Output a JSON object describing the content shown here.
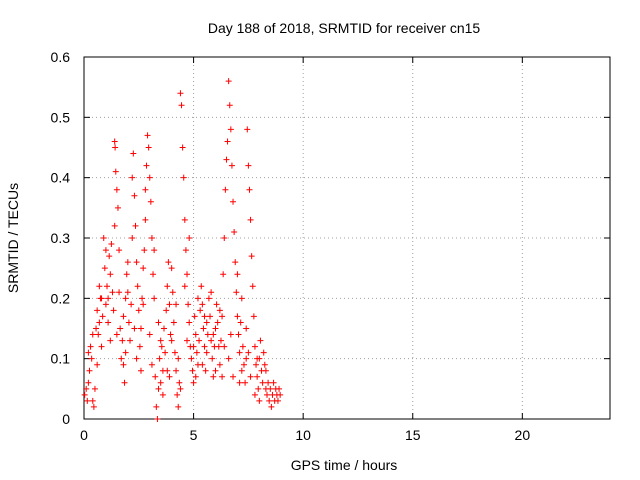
{
  "chart_data": {
    "type": "scatter",
    "title": "Day 188 of 2018, SRMTID for receiver cn15",
    "xlabel": "GPS time / hours",
    "ylabel": "SRMTID / TECUs",
    "xlim": [
      0,
      24
    ],
    "ylim": [
      0,
      0.6
    ],
    "xticks": [
      0,
      5,
      10,
      15,
      20
    ],
    "xtick_labels": [
      "0",
      "5",
      "10",
      "15",
      "20"
    ],
    "yticks": [
      0,
      0.1,
      0.2,
      0.3,
      0.4,
      0.5,
      0.6
    ],
    "ytick_labels": [
      "0",
      "0.1",
      "0.2",
      "0.3",
      "0.4",
      "0.5",
      "0.6"
    ],
    "grid": true,
    "marker": "+",
    "color": "#ff0000",
    "series": [
      {
        "name": "cn15",
        "points": [
          [
            0.03,
            0.04
          ],
          [
            0.1,
            0.05
          ],
          [
            0.15,
            0.03
          ],
          [
            0.2,
            0.06
          ],
          [
            0.25,
            0.08
          ],
          [
            0.3,
            0.12
          ],
          [
            0.35,
            0.1
          ],
          [
            0.4,
            0.03
          ],
          [
            0.45,
            0.02
          ],
          [
            0.5,
            0.05
          ],
          [
            0.55,
            0.15
          ],
          [
            0.6,
            0.18
          ],
          [
            0.65,
            0.14
          ],
          [
            0.7,
            0.22
          ],
          [
            0.75,
            0.2
          ],
          [
            0.8,
            0.12
          ],
          [
            0.85,
            0.17
          ],
          [
            0.9,
            0.3
          ],
          [
            0.95,
            0.25
          ],
          [
            1.0,
            0.19
          ],
          [
            1.05,
            0.22
          ],
          [
            1.1,
            0.16
          ],
          [
            1.15,
            0.27
          ],
          [
            1.2,
            0.24
          ],
          [
            1.25,
            0.29
          ],
          [
            1.3,
            0.21
          ],
          [
            1.35,
            0.18
          ],
          [
            1.4,
            0.46
          ],
          [
            1.42,
            0.45
          ],
          [
            1.45,
            0.41
          ],
          [
            1.5,
            0.38
          ],
          [
            1.55,
            0.35
          ],
          [
            1.6,
            0.28
          ],
          [
            1.65,
            0.15
          ],
          [
            1.7,
            0.1
          ],
          [
            1.75,
            0.13
          ],
          [
            1.8,
            0.09
          ],
          [
            1.85,
            0.06
          ],
          [
            1.9,
            0.2
          ],
          [
            1.95,
            0.24
          ],
          [
            2.0,
            0.21
          ],
          [
            2.05,
            0.16
          ],
          [
            2.1,
            0.13
          ],
          [
            2.15,
            0.19
          ],
          [
            2.2,
            0.4
          ],
          [
            2.25,
            0.44
          ],
          [
            2.3,
            0.37
          ],
          [
            2.35,
            0.32
          ],
          [
            2.4,
            0.26
          ],
          [
            2.45,
            0.22
          ],
          [
            2.5,
            0.18
          ],
          [
            2.55,
            0.12
          ],
          [
            2.6,
            0.15
          ],
          [
            2.65,
            0.2
          ],
          [
            2.7,
            0.25
          ],
          [
            2.75,
            0.28
          ],
          [
            2.8,
            0.38
          ],
          [
            2.85,
            0.42
          ],
          [
            2.9,
            0.47
          ],
          [
            2.95,
            0.45
          ],
          [
            3.0,
            0.4
          ],
          [
            3.05,
            0.36
          ],
          [
            3.1,
            0.3
          ],
          [
            3.15,
            0.24
          ],
          [
            3.2,
            0.2
          ],
          [
            3.25,
            0.07
          ],
          [
            3.3,
            0.02
          ],
          [
            3.35,
            0.0
          ],
          [
            3.4,
            0.05
          ],
          [
            3.45,
            0.1
          ],
          [
            3.5,
            0.06
          ],
          [
            3.55,
            0.12
          ],
          [
            3.6,
            0.08
          ],
          [
            3.65,
            0.15
          ],
          [
            3.7,
            0.11
          ],
          [
            3.75,
            0.18
          ],
          [
            3.8,
            0.22
          ],
          [
            3.85,
            0.26
          ],
          [
            3.9,
            0.19
          ],
          [
            3.95,
            0.14
          ],
          [
            4.0,
            0.25
          ],
          [
            4.05,
            0.21
          ],
          [
            4.1,
            0.16
          ],
          [
            4.15,
            0.11
          ],
          [
            4.2,
            0.08
          ],
          [
            4.25,
            0.04
          ],
          [
            4.3,
            0.02
          ],
          [
            4.35,
            0.06
          ],
          [
            4.4,
            0.54
          ],
          [
            4.45,
            0.52
          ],
          [
            4.5,
            0.45
          ],
          [
            4.55,
            0.4
          ],
          [
            4.6,
            0.33
          ],
          [
            4.65,
            0.28
          ],
          [
            4.7,
            0.24
          ],
          [
            4.75,
            0.19
          ],
          [
            4.8,
            0.16
          ],
          [
            4.85,
            0.12
          ],
          [
            4.9,
            0.1
          ],
          [
            4.95,
            0.08
          ],
          [
            5.0,
            0.12
          ],
          [
            5.05,
            0.17
          ],
          [
            5.1,
            0.14
          ],
          [
            5.15,
            0.11
          ],
          [
            5.2,
            0.09
          ],
          [
            5.25,
            0.13
          ],
          [
            5.3,
            0.18
          ],
          [
            5.35,
            0.22
          ],
          [
            5.4,
            0.19
          ],
          [
            5.45,
            0.15
          ],
          [
            5.5,
            0.12
          ],
          [
            5.55,
            0.08
          ],
          [
            5.6,
            0.11
          ],
          [
            5.65,
            0.14
          ],
          [
            5.7,
            0.2
          ],
          [
            5.75,
            0.17
          ],
          [
            5.8,
            0.13
          ],
          [
            5.85,
            0.1
          ],
          [
            5.9,
            0.07
          ],
          [
            5.95,
            0.12
          ],
          [
            6.0,
            0.15
          ],
          [
            6.05,
            0.19
          ],
          [
            6.1,
            0.16
          ],
          [
            6.15,
            0.12
          ],
          [
            6.2,
            0.09
          ],
          [
            6.25,
            0.13
          ],
          [
            6.3,
            0.17
          ],
          [
            6.35,
            0.24
          ],
          [
            6.4,
            0.3
          ],
          [
            6.45,
            0.38
          ],
          [
            6.5,
            0.43
          ],
          [
            6.55,
            0.46
          ],
          [
            6.6,
            0.56
          ],
          [
            6.65,
            0.52
          ],
          [
            6.7,
            0.48
          ],
          [
            6.75,
            0.42
          ],
          [
            6.8,
            0.36
          ],
          [
            6.85,
            0.31
          ],
          [
            6.9,
            0.26
          ],
          [
            6.95,
            0.21
          ],
          [
            7.0,
            0.17
          ],
          [
            7.05,
            0.14
          ],
          [
            7.1,
            0.11
          ],
          [
            7.15,
            0.16
          ],
          [
            7.2,
            0.2
          ],
          [
            7.25,
            0.12
          ],
          [
            7.3,
            0.09
          ],
          [
            7.35,
            0.06
          ],
          [
            7.4,
            0.15
          ],
          [
            7.45,
            0.48
          ],
          [
            7.5,
            0.42
          ],
          [
            7.55,
            0.38
          ],
          [
            7.6,
            0.33
          ],
          [
            7.65,
            0.27
          ],
          [
            7.7,
            0.22
          ],
          [
            7.75,
            0.17
          ],
          [
            7.8,
            0.12
          ],
          [
            7.85,
            0.09
          ],
          [
            7.9,
            0.07
          ],
          [
            7.95,
            0.05
          ],
          [
            8.0,
            0.1
          ],
          [
            8.05,
            0.13
          ],
          [
            8.1,
            0.08
          ],
          [
            8.15,
            0.06
          ],
          [
            8.2,
            0.11
          ],
          [
            8.25,
            0.09
          ],
          [
            8.3,
            0.05
          ],
          [
            8.35,
            0.04
          ],
          [
            8.4,
            0.06
          ],
          [
            8.45,
            0.03
          ],
          [
            8.5,
            0.05
          ],
          [
            8.55,
            0.02
          ],
          [
            8.6,
            0.04
          ],
          [
            8.65,
            0.06
          ],
          [
            8.7,
            0.03
          ],
          [
            8.75,
            0.05
          ],
          [
            8.8,
            0.04
          ],
          [
            8.85,
            0.03
          ],
          [
            8.9,
            0.05
          ],
          [
            8.95,
            0.04
          ],
          [
            0.2,
            0.11
          ],
          [
            0.4,
            0.14
          ],
          [
            0.6,
            0.09
          ],
          [
            0.8,
            0.2
          ],
          [
            1.0,
            0.28
          ],
          [
            1.2,
            0.13
          ],
          [
            1.4,
            0.32
          ],
          [
            1.6,
            0.21
          ],
          [
            1.8,
            0.17
          ],
          [
            2.0,
            0.26
          ],
          [
            2.2,
            0.3
          ],
          [
            2.4,
            0.1
          ],
          [
            2.6,
            0.08
          ],
          [
            2.8,
            0.33
          ],
          [
            3.0,
            0.14
          ],
          [
            3.2,
            0.28
          ],
          [
            3.4,
            0.16
          ],
          [
            3.6,
            0.04
          ],
          [
            3.8,
            0.08
          ],
          [
            4.0,
            0.13
          ],
          [
            4.2,
            0.19
          ],
          [
            4.4,
            0.05
          ],
          [
            4.6,
            0.22
          ],
          [
            4.8,
            0.3
          ],
          [
            5.0,
            0.06
          ],
          [
            5.2,
            0.2
          ],
          [
            5.4,
            0.09
          ],
          [
            5.6,
            0.16
          ],
          [
            5.8,
            0.21
          ],
          [
            6.0,
            0.08
          ],
          [
            6.2,
            0.18
          ],
          [
            6.4,
            0.12
          ],
          [
            6.6,
            0.1
          ],
          [
            6.8,
            0.07
          ],
          [
            7.0,
            0.24
          ],
          [
            7.2,
            0.08
          ],
          [
            7.4,
            0.1
          ],
          [
            7.6,
            0.07
          ],
          [
            7.8,
            0.04
          ],
          [
            8.0,
            0.03
          ],
          [
            0.7,
            0.16
          ],
          [
            1.1,
            0.2
          ],
          [
            1.5,
            0.14
          ],
          [
            1.9,
            0.11
          ],
          [
            2.3,
            0.15
          ],
          [
            2.7,
            0.19
          ],
          [
            3.1,
            0.09
          ],
          [
            3.5,
            0.13
          ],
          [
            3.9,
            0.07
          ],
          [
            4.3,
            0.1
          ],
          [
            4.7,
            0.13
          ],
          [
            5.1,
            0.07
          ],
          [
            5.5,
            0.17
          ],
          [
            5.9,
            0.14
          ],
          [
            6.3,
            0.07
          ],
          [
            6.7,
            0.14
          ],
          [
            7.1,
            0.06
          ],
          [
            7.5,
            0.11
          ],
          [
            7.9,
            0.1
          ],
          [
            8.3,
            0.08
          ]
        ]
      }
    ]
  }
}
